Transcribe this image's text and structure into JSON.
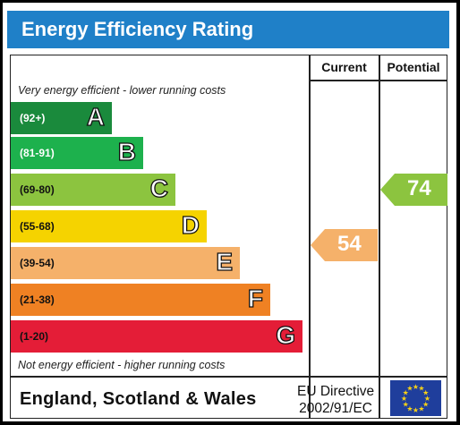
{
  "title": "Energy Efficiency Rating",
  "columns": {
    "current": "Current",
    "potential": "Potential"
  },
  "top_note": "Very energy efficient - lower running costs",
  "bottom_note": "Not energy efficient - higher running costs",
  "bands": [
    {
      "range": "(92+)",
      "letter": "A",
      "color": "#1a8a3c",
      "range_color": "#ffffff"
    },
    {
      "range": "(81-91)",
      "letter": "B",
      "color": "#1db14d",
      "range_color": "#ffffff"
    },
    {
      "range": "(69-80)",
      "letter": "C",
      "color": "#8cc43f",
      "range_color": "#111111"
    },
    {
      "range": "(55-68)",
      "letter": "D",
      "color": "#f5d300",
      "range_color": "#111111"
    },
    {
      "range": "(39-54)",
      "letter": "E",
      "color": "#f5b16a",
      "range_color": "#111111"
    },
    {
      "range": "(21-38)",
      "letter": "F",
      "color": "#ef8123",
      "range_color": "#111111"
    },
    {
      "range": "(1-20)",
      "letter": "G",
      "color": "#e41d37",
      "range_color": "#111111"
    }
  ],
  "current_rating": {
    "value": "54",
    "band": "E",
    "color": "#f5b16a"
  },
  "potential_rating": {
    "value": "74",
    "band": "C",
    "color": "#8cc43f"
  },
  "footer": {
    "region": "England, Scotland & Wales",
    "directive_line1": "EU Directive",
    "directive_line2": "2002/91/EC"
  }
}
